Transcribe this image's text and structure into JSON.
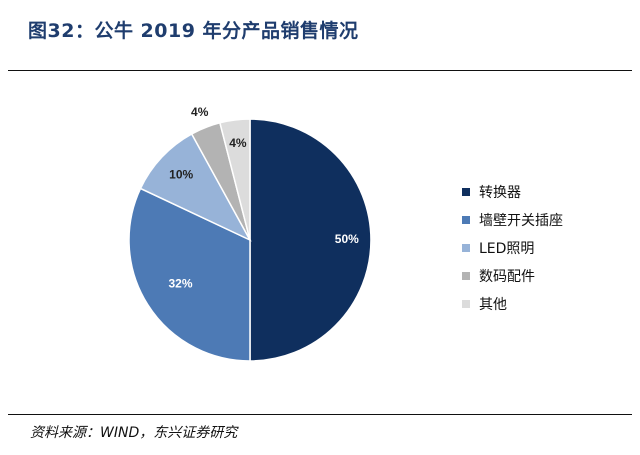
{
  "page": {
    "title": "图32：公牛 2019 年分产品销售情况",
    "source": "资料来源：WIND，东兴证券研究"
  },
  "chart_data": {
    "type": "pie",
    "categories": [
      "转换器",
      "墙壁开关插座",
      "LED照明",
      "数码配件",
      "其他"
    ],
    "values": [
      50,
      32,
      10,
      4,
      4
    ],
    "value_labels": [
      "50%",
      "32%",
      "10%",
      "4%",
      "4%"
    ],
    "colors": [
      "#0f2f5e",
      "#4d7ab5",
      "#97b3d8",
      "#b3b3b3",
      "#dcdcdc"
    ],
    "label_colors": [
      "#ffffff",
      "#ffffff",
      "#222222",
      "#222222",
      "#222222"
    ],
    "start": "12 o'clock",
    "direction": "clockwise",
    "legend_position": "right"
  }
}
